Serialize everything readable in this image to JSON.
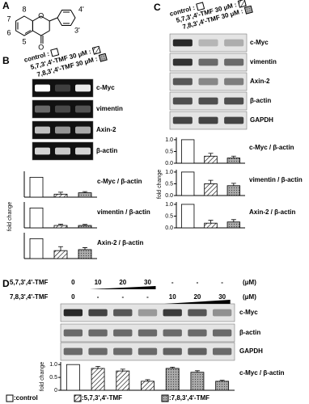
{
  "panel_a": {
    "label": "A",
    "atoms": [
      "O",
      "O"
    ],
    "positions": [
      "8",
      "7",
      "6",
      "5",
      "4'",
      "3'"
    ]
  },
  "panel_b": {
    "label": "B",
    "legend": [
      "control :",
      "5,7,3',4'-TMF  30 μM :",
      "7,8,3',4'-TMF 30 μM :"
    ],
    "blots": [
      "c-Myc",
      "vimentin",
      "Axin-2",
      "β-actin"
    ],
    "y_label": "fold change",
    "charts": [
      {
        "title": "c-Myc / β-actin",
        "ylim": [
          0,
          1.3
        ],
        "values": [
          1.0,
          0.15,
          0.22
        ],
        "errors": [
          null,
          0.1,
          0.06
        ]
      },
      {
        "title": "vimentin / β-actin",
        "ylim": [
          0,
          1.3
        ],
        "values": [
          1.0,
          0.12,
          0.12
        ],
        "errors": [
          null,
          0.06,
          0.05
        ]
      },
      {
        "title": "Axin-2 / β-actin",
        "ylim": [
          0,
          1.3
        ],
        "values": [
          1.0,
          0.4,
          0.45
        ],
        "errors": [
          null,
          0.2,
          0.1
        ]
      }
    ]
  },
  "panel_c": {
    "label": "C",
    "legend": [
      "control :",
      "5,7,3',4'-TMF  30 μM :",
      "7,8,3',4'-TMF 30 μM :"
    ],
    "blots": [
      "c-Myc",
      "vimentin",
      "Axin-2",
      "β-actin",
      "GAPDH"
    ],
    "y_label": "fold change",
    "charts": [
      {
        "title": "c-Myc / β-actin",
        "ylim": [
          0,
          1.1
        ],
        "yticks": [
          {
            "value": 1,
            "label": "1.0"
          },
          {
            "value": 0.5,
            "label": "0.5"
          },
          {
            "value": 0,
            "label": "0.0"
          }
        ],
        "values": [
          1.0,
          0.3,
          0.22
        ],
        "errors": [
          null,
          0.12,
          0.08
        ]
      },
      {
        "title": "vimentin / β-actin",
        "ylim": [
          0,
          1.1
        ],
        "yticks": [
          {
            "value": 1,
            "label": "1.0"
          },
          {
            "value": 0.5,
            "label": "0.5"
          },
          {
            "value": 0,
            "label": "0.0"
          }
        ],
        "values": [
          1.0,
          0.5,
          0.42
        ],
        "errors": [
          null,
          0.15,
          0.1
        ]
      },
      {
        "title": "Axin-2 / β-actin",
        "ylim": [
          0,
          1.1
        ],
        "yticks": [
          {
            "value": 1,
            "label": "1.0"
          },
          {
            "value": 0.5,
            "label": "0.5"
          },
          {
            "value": 0,
            "label": "0.0"
          }
        ],
        "values": [
          1.0,
          0.2,
          0.25
        ],
        "errors": [
          null,
          0.12,
          0.1
        ]
      }
    ]
  },
  "panel_d": {
    "label": "D",
    "rows": [
      {
        "name": "5,7,3',4'-TMF",
        "doses": [
          "0",
          "10",
          "20",
          "30",
          "-",
          "-",
          "-"
        ]
      },
      {
        "name": "7,8,3',4'-TMF",
        "doses": [
          "0",
          "-",
          "-",
          "-",
          "10",
          "20",
          "30"
        ]
      }
    ],
    "unit": "(μM)",
    "blots": [
      "c-Myc",
      "β-actin",
      "GAPDH"
    ],
    "y_label": "fold change",
    "chart": {
      "title": "c-Myc / β-actin",
      "ylim": [
        0,
        1.1
      ],
      "yticks": [
        {
          "value": 1,
          "label": "1.0"
        },
        {
          "value": 0.5,
          "label": "0.5"
        },
        0
      ],
      "values": [
        1.0,
        0.85,
        0.75,
        0.35,
        0.85,
        0.7,
        0.35
      ],
      "errors": [
        null,
        0.08,
        0.07,
        0.06,
        0.05,
        0.06,
        0.04
      ]
    },
    "legend": [
      ":control",
      ":5,7,3',4'-TMF",
      ":7,8,3',4'-TMF"
    ]
  }
}
